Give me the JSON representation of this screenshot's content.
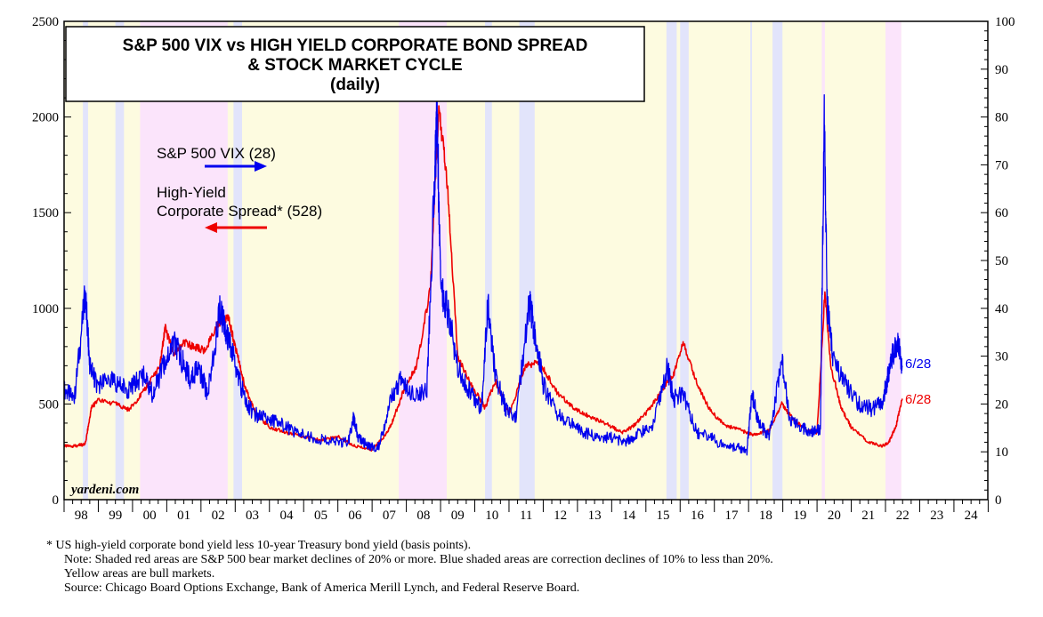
{
  "chart_data": {
    "type": "line",
    "title_lines": [
      "S&P 500 VIX vs HIGH YIELD CORPORATE BOND SPREAD",
      "& STOCK MARKET CYCLE",
      "(daily)"
    ],
    "watermark": "yardeni.com",
    "x_range": [
      1998.0,
      2024.99
    ],
    "x_tick_labels": [
      "98",
      "99",
      "00",
      "01",
      "02",
      "03",
      "04",
      "05",
      "06",
      "07",
      "08",
      "09",
      "10",
      "11",
      "12",
      "13",
      "14",
      "15",
      "16",
      "17",
      "18",
      "19",
      "20",
      "21",
      "22",
      "23",
      "24"
    ],
    "left_axis": {
      "ylim": [
        0,
        2500
      ],
      "ticks": [
        0,
        500,
        1000,
        1500,
        2000,
        2500
      ]
    },
    "right_axis": {
      "ylim": [
        0,
        100
      ],
      "ticks": [
        0,
        10,
        20,
        30,
        40,
        50,
        60,
        70,
        80,
        90,
        100
      ]
    },
    "shaded_periods": [
      {
        "type": "yellow",
        "start": 1998.0,
        "end": 2022.46
      },
      {
        "type": "red",
        "start": 2000.22,
        "end": 2002.78
      },
      {
        "type": "red",
        "start": 2007.78,
        "end": 2009.18
      },
      {
        "type": "red",
        "start": 2020.14,
        "end": 2020.23
      },
      {
        "type": "red",
        "start": 2022.0,
        "end": 2022.46
      },
      {
        "type": "blue",
        "start": 1998.55,
        "end": 1998.7
      },
      {
        "type": "blue",
        "start": 1999.5,
        "end": 1999.75
      },
      {
        "type": "blue",
        "start": 2002.95,
        "end": 2003.2
      },
      {
        "type": "blue",
        "start": 2010.3,
        "end": 2010.5
      },
      {
        "type": "blue",
        "start": 2011.3,
        "end": 2011.75
      },
      {
        "type": "blue",
        "start": 2015.6,
        "end": 2015.9
      },
      {
        "type": "blue",
        "start": 2016.0,
        "end": 2016.25
      },
      {
        "type": "blue",
        "start": 2018.05,
        "end": 2018.1
      },
      {
        "type": "blue",
        "start": 2018.7,
        "end": 2018.99
      }
    ],
    "series": [
      {
        "name": "S&P 500 VIX",
        "axis": "right",
        "color": "#0000ee",
        "legend_label": "S&P 500 VIX (28)",
        "end_label": "6/28",
        "x": [
          1998.0,
          1998.3,
          1998.62,
          1998.75,
          1998.95,
          1999.3,
          1999.6,
          1999.9,
          2000.3,
          2000.6,
          2000.9,
          2001.2,
          2001.45,
          2001.7,
          2001.9,
          2002.2,
          2002.55,
          2002.75,
          2002.95,
          2003.2,
          2003.5,
          2003.9,
          2004.3,
          2004.8,
          2005.3,
          2005.8,
          2006.3,
          2006.45,
          2006.6,
          2006.9,
          2007.2,
          2007.6,
          2007.85,
          2008.2,
          2008.6,
          2008.83,
          2008.9,
          2009.0,
          2009.2,
          2009.5,
          2009.9,
          2010.2,
          2010.38,
          2010.6,
          2010.9,
          2011.2,
          2011.6,
          2011.8,
          2012.0,
          2012.4,
          2012.8,
          2013.2,
          2013.6,
          2014.0,
          2014.4,
          2014.8,
          2015.2,
          2015.63,
          2015.8,
          2016.1,
          2016.5,
          2016.9,
          2017.3,
          2017.7,
          2017.95,
          2018.1,
          2018.3,
          2018.6,
          2018.97,
          2019.2,
          2019.6,
          2019.9,
          2020.1,
          2020.21,
          2020.3,
          2020.5,
          2020.8,
          2021.2,
          2021.6,
          2021.9,
          2022.05,
          2022.2,
          2022.35,
          2022.49
        ],
        "y": [
          23,
          21,
          43,
          28,
          24,
          25,
          24,
          23,
          26,
          22,
          28,
          33,
          29,
          25,
          28,
          22,
          40,
          34,
          30,
          23,
          18,
          17,
          16,
          14,
          13,
          12,
          12,
          17,
          13,
          11,
          11,
          22,
          25,
          22,
          23,
          68,
          80,
          45,
          40,
          28,
          22,
          19,
          42,
          26,
          19,
          17,
          41,
          33,
          24,
          18,
          16,
          14,
          13,
          13,
          12,
          14,
          15,
          28,
          21,
          22,
          14,
          13,
          11,
          11,
          10,
          22,
          16,
          13,
          29,
          17,
          15,
          14,
          15,
          80,
          40,
          28,
          25,
          20,
          19,
          20,
          25,
          30,
          33,
          28
        ]
      },
      {
        "name": "High-Yield Corporate Spread",
        "axis": "left",
        "color": "#ee0000",
        "legend_label_line1": "High-Yield",
        "legend_label_line2": "Corporate Spread* (528)",
        "end_label": "6/28",
        "x": [
          1998.0,
          1998.3,
          1998.62,
          1998.8,
          1999.0,
          1999.5,
          1999.9,
          2000.3,
          2000.8,
          2000.95,
          2001.2,
          2001.5,
          2001.8,
          2002.1,
          2002.5,
          2002.8,
          2003.0,
          2003.3,
          2003.6,
          2004.0,
          2004.5,
          2005.0,
          2005.5,
          2006.0,
          2006.5,
          2007.0,
          2007.4,
          2007.6,
          2007.9,
          2008.3,
          2008.7,
          2008.95,
          2009.2,
          2009.5,
          2009.9,
          2010.3,
          2010.6,
          2011.0,
          2011.5,
          2011.9,
          2012.4,
          2012.9,
          2013.3,
          2013.8,
          2014.3,
          2014.6,
          2015.0,
          2015.5,
          2015.8,
          2016.1,
          2016.5,
          2016.9,
          2017.3,
          2017.8,
          2018.1,
          2018.6,
          2018.97,
          2019.3,
          2019.7,
          2020.0,
          2020.23,
          2020.4,
          2020.7,
          2021.0,
          2021.5,
          2021.9,
          2022.1,
          2022.3,
          2022.49
        ],
        "y": [
          280,
          280,
          290,
          480,
          520,
          500,
          470,
          560,
          700,
          900,
          760,
          820,
          800,
          780,
          920,
          960,
          800,
          580,
          450,
          380,
          350,
          330,
          310,
          330,
          280,
          260,
          340,
          410,
          560,
          700,
          1100,
          2050,
          1650,
          750,
          600,
          480,
          620,
          450,
          700,
          720,
          560,
          480,
          440,
          400,
          350,
          380,
          450,
          580,
          650,
          820,
          600,
          460,
          390,
          360,
          340,
          360,
          500,
          420,
          360,
          350,
          1080,
          700,
          480,
          380,
          300,
          280,
          300,
          380,
          528
        ]
      }
    ],
    "footnotes": [
      "*   US high-yield corporate bond yield less 10-year Treasury bond yield (basis points).",
      "Note: Shaded red areas are S&P 500 bear market declines of 20% or more.  Blue shaded areas are correction declines of 10% to less than 20%.",
      "Yellow areas are bull markets.",
      "Source: Chicago Board Options Exchange, Bank of America Merill Lynch, and Federal Reserve Board."
    ]
  }
}
